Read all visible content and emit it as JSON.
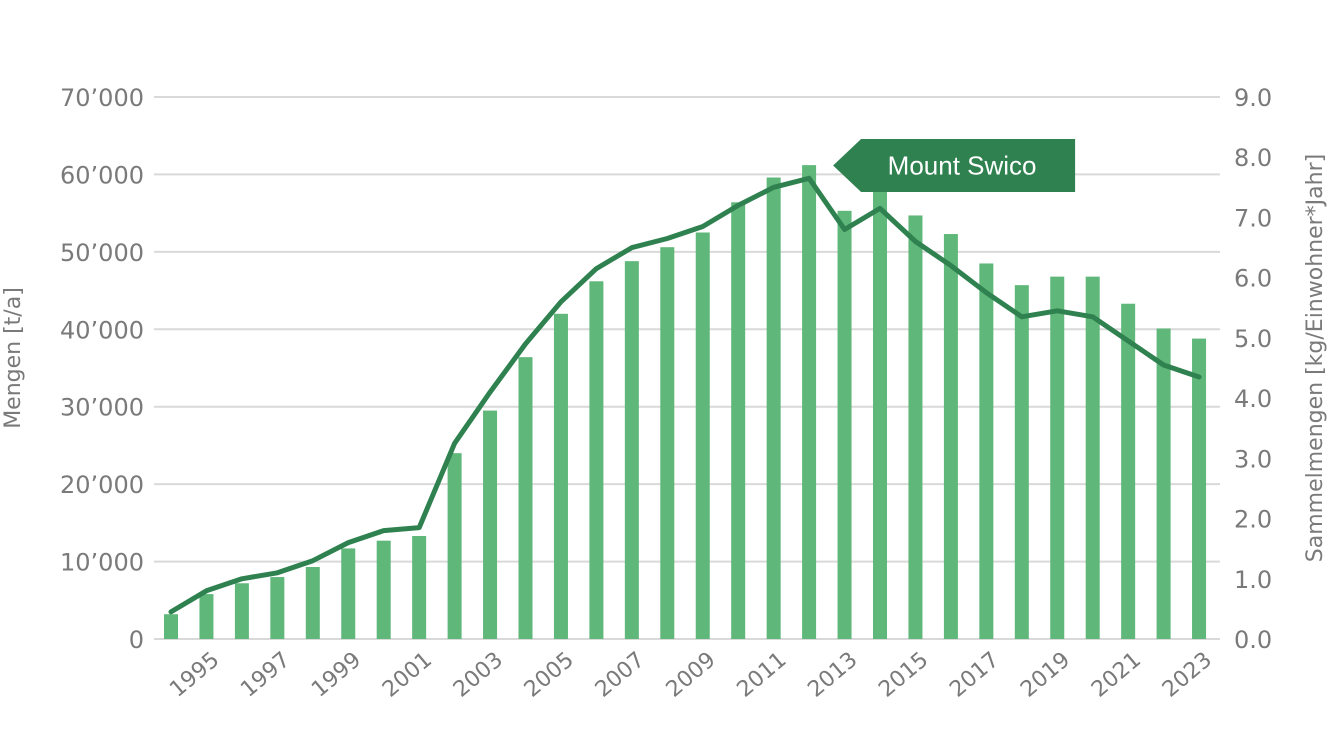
{
  "chart_data": {
    "type": "bar",
    "title": "",
    "categories": [
      "1994",
      "1995",
      "1996",
      "1997",
      "1998",
      "1999",
      "2000",
      "2001",
      "2002",
      "2003",
      "2004",
      "2005",
      "2006",
      "2007",
      "2008",
      "2009",
      "2010",
      "2011",
      "2012",
      "2013",
      "2014",
      "2015",
      "2016",
      "2017",
      "2018",
      "2019",
      "2020",
      "2021",
      "2022",
      "2023"
    ],
    "x_tick_labels": [
      "1995",
      "1997",
      "1999",
      "2001",
      "2003",
      "2005",
      "2007",
      "2009",
      "2011",
      "2013",
      "2015",
      "2017",
      "2019",
      "2021",
      "2023"
    ],
    "series": [
      {
        "axis": "left",
        "kind": "bar",
        "values": [
          3200,
          5800,
          7200,
          8000,
          9300,
          11700,
          12700,
          13300,
          24000,
          29500,
          36400,
          42000,
          46200,
          48800,
          50600,
          52500,
          56400,
          59600,
          61200,
          55300,
          58800,
          54700,
          52300,
          48500,
          45700,
          46800,
          46800,
          43300,
          40100,
          38800
        ]
      },
      {
        "axis": "right",
        "kind": "line",
        "values": [
          0.45,
          0.8,
          1.0,
          1.1,
          1.3,
          1.6,
          1.8,
          1.85,
          3.25,
          4.1,
          4.9,
          5.6,
          6.15,
          6.5,
          6.65,
          6.85,
          7.2,
          7.5,
          7.65,
          6.8,
          7.15,
          6.6,
          6.2,
          5.75,
          5.35,
          5.45,
          5.35,
          4.95,
          4.55,
          4.35
        ]
      }
    ],
    "y_left": {
      "label": "Mengen [t/a]",
      "ylim": [
        0,
        70000
      ],
      "ticks": [
        0,
        10000,
        20000,
        30000,
        40000,
        50000,
        60000,
        70000
      ],
      "tick_labels": [
        "0",
        "10’000",
        "20’000",
        "30’000",
        "40’000",
        "50’000",
        "60’000",
        "70’000"
      ]
    },
    "y_right": {
      "label": "Sammelmengen [kg/Einwohner*Jahr]",
      "ylim": [
        0,
        9
      ],
      "ticks": [
        0,
        1,
        2,
        3,
        4,
        5,
        6,
        7,
        8,
        9
      ],
      "tick_labels": [
        "0.0",
        "1.0",
        "2.0",
        "3.0",
        "4.0",
        "5.0",
        "6.0",
        "7.0",
        "8.0",
        "9.0"
      ]
    },
    "annotation": {
      "text": "Mount Swico",
      "category": "2012"
    },
    "grid": true,
    "legend": "none",
    "colors": {
      "bar": "#5fb779",
      "line": "#2f8250",
      "grid": "#d9d9d9",
      "text": "#7a7a7a",
      "callout": "#2f8250"
    }
  }
}
